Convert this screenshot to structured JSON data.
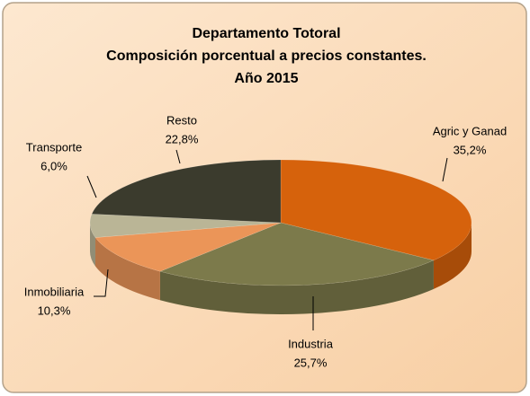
{
  "chart_data": {
    "type": "pie3d",
    "title": [
      "Departamento Totoral",
      "Composición porcentual a precios constantes.",
      "Año 2015"
    ],
    "categories": [
      "Agric y Ganad",
      "Industria",
      "Inmobiliaria",
      "Transporte",
      "Resto"
    ],
    "values": [
      35.2,
      25.7,
      10.3,
      6.0,
      22.8
    ],
    "value_labels": [
      "35,2%",
      "25,7%",
      "10,3%",
      "6,0%",
      "22,8%"
    ],
    "colors": [
      "#d6620c",
      "#7c7a4b",
      "#eb9558",
      "#bab596",
      "#3b3b2d"
    ]
  }
}
